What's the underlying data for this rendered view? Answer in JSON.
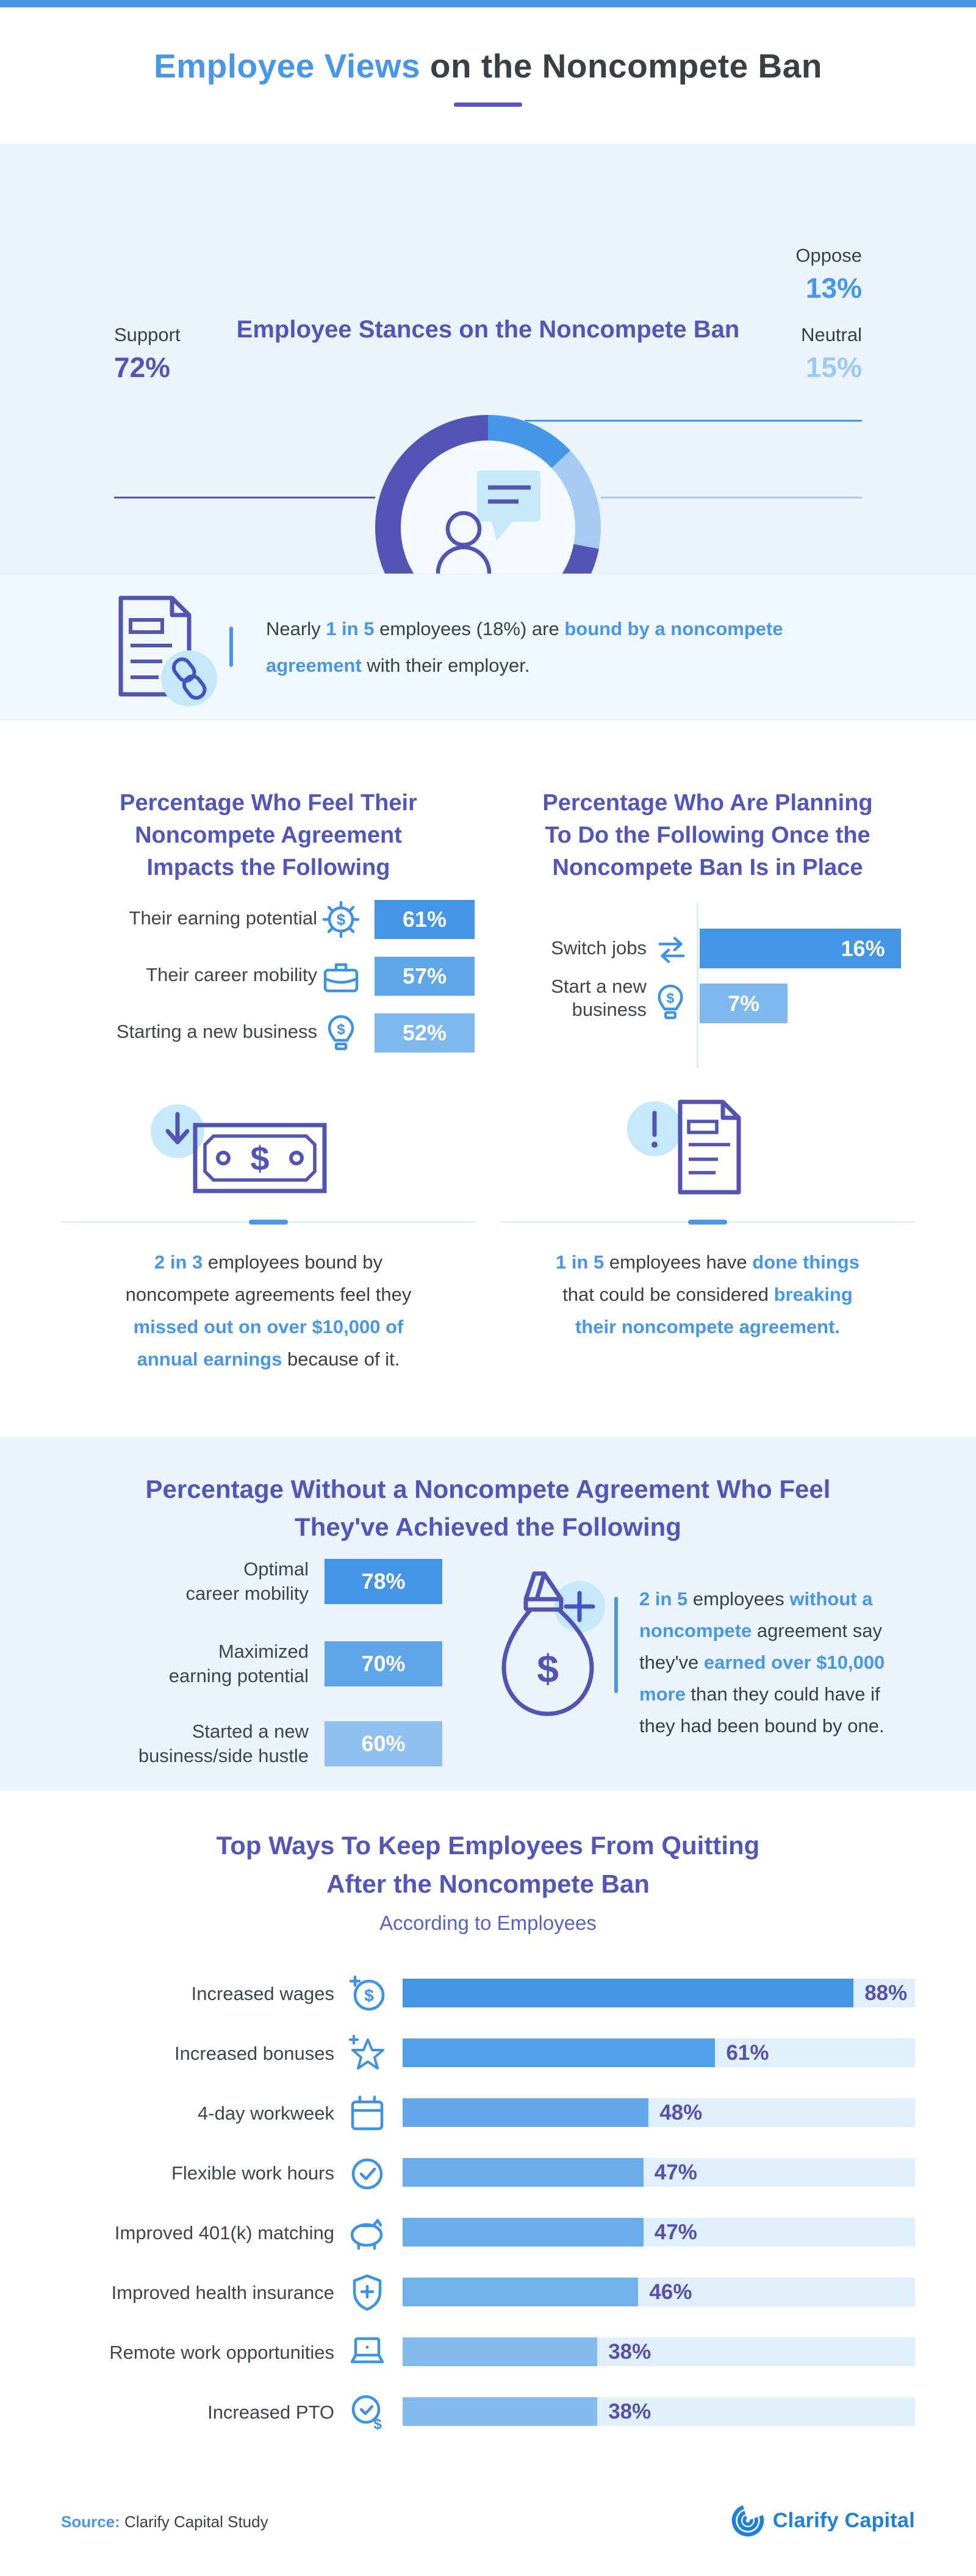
{
  "colors": {
    "accent_blue": "#4796e8",
    "accent_purple": "#5156b8",
    "pct_purple": "#584fae",
    "section_bg": "#ebf4fc",
    "track_bg": "#dff0fc",
    "icon_blue": "#3e92e5",
    "icon_purple": "#5254b4",
    "light_circle": "#c5e9fa"
  },
  "header": {
    "title_highlight": "Employee Views",
    "title_rest": " on the Noncompete Ban"
  },
  "stances": {
    "heading": "Employee Stances on the Noncompete Ban",
    "slices": [
      {
        "label": "Oppose",
        "value": "13%",
        "pct": 13,
        "color": "#4796e8"
      },
      {
        "label": "Neutral",
        "value": "15%",
        "pct": 15,
        "color": "#a6cbf2"
      },
      {
        "label": "Support",
        "value": "72%",
        "pct": 72,
        "color": "#5254b6"
      }
    ]
  },
  "callout_bound": {
    "p0": "Nearly ",
    "h1": "1 in 5",
    "p2": " employees (18%) are ",
    "h3": "bound by a noncompete",
    "h4": "agreement",
    "p5": " with their employer."
  },
  "impacts": {
    "heading_lines": [
      "Percentage Who Feel Their",
      "Noncompete Agreement",
      "Impacts the Following"
    ],
    "rows": [
      {
        "label": "Their earning potential",
        "icon": "gear-dollar-icon",
        "value": "61%",
        "color": "#4495e5"
      },
      {
        "label": "Their career mobility",
        "icon": "briefcase-icon",
        "value": "57%",
        "color": "#5fa6e9"
      },
      {
        "label": "Starting a new business",
        "icon": "lightbulb-dollar-icon",
        "value": "52%",
        "color": "#7fb8ee"
      }
    ]
  },
  "plans": {
    "heading_lines": [
      "Percentage Who Are Planning",
      "To Do the Following Once the",
      "Noncompete Ban Is in Place"
    ],
    "rows": [
      {
        "label_line1": "Switch jobs",
        "label_line2": "",
        "icon": "swap-arrows-icon",
        "value": "16%",
        "value_num": 16,
        "color": "#4495e5"
      },
      {
        "label_line1": "Start a new",
        "label_line2": "business",
        "icon": "lightbulb-dollar-icon",
        "value": "7%",
        "value_num": 7,
        "color": "#7fb8ee"
      }
    ]
  },
  "missed_out": {
    "h0": "2 in 3",
    "p1": " employees bound by",
    "p2": "noncompete agreements feel they",
    "h3": "missed out on over $10,000 of",
    "h4": "annual earnings",
    "p5": " because of it."
  },
  "broken": {
    "h0": "1 in 5",
    "p1": " employees have ",
    "h2": "done things",
    "p3": "that could be considered ",
    "h4": "breaking",
    "h5": "their noncompete agreement."
  },
  "achieved": {
    "heading_lines": [
      "Percentage Without a Noncompete Agreement Who Feel",
      "They've Achieved the Following"
    ],
    "rows": [
      {
        "label_line1": "Optimal",
        "label_line2": "career mobility",
        "value": "78%",
        "color": "#4495e5"
      },
      {
        "label_line1": "Maximized",
        "label_line2": "earning potential",
        "value": "70%",
        "color": "#5fa6e9"
      },
      {
        "label_line1": "Started a new",
        "label_line2": "business/side hustle",
        "value": "60%",
        "color": "#8fc0f0"
      }
    ]
  },
  "earned_more": {
    "h0": "2 in 5",
    "p1": " employees ",
    "h2": "without a",
    "h3": "noncompete",
    "p4": " agreement say",
    "p5": "they've ",
    "h6": "earned over $10,000",
    "h7": "more",
    "p8": " than they could have if",
    "p9": "they had been bound by one."
  },
  "topways": {
    "heading_lines": [
      "Top Ways To Keep Employees From Quitting",
      "After the Noncompete Ban"
    ],
    "subheading": "According to Employees",
    "rows": [
      {
        "label": "Increased wages",
        "icon": "coin-dollar-icon",
        "value": "88%",
        "value_num": 88,
        "color": "#4495e4"
      },
      {
        "label": "Increased bonuses",
        "icon": "star-plus-icon",
        "value": "61%",
        "value_num": 61,
        "color": "#539fe7"
      },
      {
        "label": "4-day workweek",
        "icon": "calendar-icon",
        "value": "48%",
        "value_num": 48,
        "color": "#63a8ea"
      },
      {
        "label": "Flexible work hours",
        "icon": "badge-check-icon",
        "value": "47%",
        "value_num": 47,
        "color": "#6baceb"
      },
      {
        "label": "Improved 401(k) matching",
        "icon": "piggy-bank-icon",
        "value": "47%",
        "value_num": 47,
        "color": "#6baceb"
      },
      {
        "label": "Improved health insurance",
        "icon": "shield-plus-icon",
        "value": "46%",
        "value_num": 46,
        "color": "#73b1ec"
      },
      {
        "label": "Remote work opportunities",
        "icon": "laptop-icon",
        "value": "38%",
        "value_num": 38,
        "color": "#84bbef"
      },
      {
        "label": "Increased PTO",
        "icon": "clock-dollar-icon",
        "value": "38%",
        "value_num": 38,
        "color": "#84bbef"
      }
    ]
  },
  "footer": {
    "source_label": "Source:",
    "source_text": "Clarify Capital Study",
    "brand_name": "Clarify Capital"
  },
  "chart_data": [
    {
      "type": "pie",
      "title": "Employee Stances on the Noncompete Ban",
      "categories": [
        "Oppose",
        "Neutral",
        "Support"
      ],
      "values": [
        13,
        15,
        72
      ],
      "colors": [
        "#4796e8",
        "#a6cbf2",
        "#5254b6"
      ],
      "layout": "donut, starts at 12 o'clock clockwise, person icon in center, labels with leader lines"
    },
    {
      "type": "bar",
      "title": "Percentage Who Feel Their Noncompete Agreement Impacts the Following",
      "categories": [
        "Their earning potential",
        "Their career mobility",
        "Starting a new business"
      ],
      "values": [
        61,
        57,
        52
      ],
      "layout": "horizontal equal-width badge bars, shade lightens with lower value, value labels inside bars"
    },
    {
      "type": "bar",
      "title": "Percentage Who Are Planning To Do the Following Once the Noncompete Ban Is in Place",
      "categories": [
        "Switch jobs",
        "Start a new business"
      ],
      "values": [
        16,
        7
      ],
      "layout": "horizontal proportional bars from a light vertical axis, value labels inside bars"
    },
    {
      "type": "bar",
      "title": "Percentage Without a Noncompete Agreement Who Feel They've Achieved the Following",
      "categories": [
        "Optimal career mobility",
        "Maximized earning potential",
        "Started a new business/side hustle"
      ],
      "values": [
        78,
        70,
        60
      ],
      "layout": "horizontal equal-width badge bars, shade lightens with lower value, value labels inside bars"
    },
    {
      "type": "bar",
      "title": "Top Ways To Keep Employees From Quitting After the Noncompete Ban",
      "subtitle": "According to Employees",
      "categories": [
        "Increased wages",
        "Increased bonuses",
        "4-day workweek",
        "Flexible work hours",
        "Improved 401(k) matching",
        "Improved health insurance",
        "Remote work opportunities",
        "Increased PTO"
      ],
      "values": [
        88,
        61,
        48,
        47,
        47,
        46,
        38,
        38
      ],
      "xlim": [
        0,
        100
      ],
      "layout": "horizontal bars on full-width light track, purple % labels right of bar end, category icons left of bars"
    }
  ]
}
